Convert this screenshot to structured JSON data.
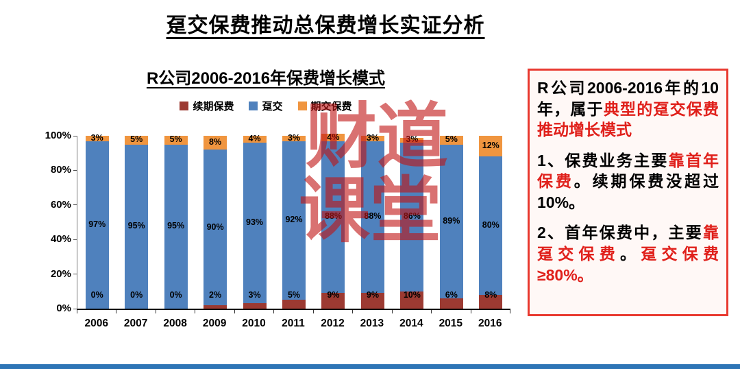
{
  "page": {
    "main_title": "趸交保费推动总保费增长实证分析",
    "bottom_bar_color": "#2e75b6"
  },
  "chart": {
    "title": "R公司2006-2016年保费增长模式",
    "watermark_lines": [
      "财道",
      "课堂"
    ],
    "watermark_color": "#c01414"
  },
  "chart_data": {
    "type": "bar",
    "stacked": true,
    "title": "R公司2006-2016年保费增长模式",
    "categories": [
      "2006",
      "2007",
      "2008",
      "2009",
      "2010",
      "2011",
      "2012",
      "2013",
      "2014",
      "2015",
      "2016"
    ],
    "series": [
      {
        "key": "renewal-premium",
        "name": "续期保费",
        "color": "#9c3a32",
        "values": [
          0,
          0,
          0,
          2,
          3,
          5,
          9,
          9,
          10,
          6,
          8
        ]
      },
      {
        "key": "single-premium",
        "name": "趸交",
        "color": "#4f81bd",
        "values": [
          97,
          95,
          95,
          90,
          93,
          92,
          88,
          88,
          86,
          89,
          80
        ]
      },
      {
        "key": "regular-premium",
        "name": "期交保费",
        "color": "#f0953f",
        "values": [
          3,
          5,
          5,
          8,
          4,
          3,
          4,
          3,
          3,
          5,
          12
        ]
      }
    ],
    "value_suffix": "%",
    "ylim": [
      0,
      100
    ],
    "yticks": [
      "0%",
      "20%",
      "40%",
      "60%",
      "80%",
      "100%"
    ],
    "legend_position": "top",
    "grid": false
  },
  "sidebar": {
    "border_color": "#e8392f",
    "background_color": "#fff8f6",
    "text_red": "#e0201b",
    "paragraphs": [
      {
        "segments": [
          {
            "text": "R公司2006-2016年的10年，属于",
            "red": false
          },
          {
            "text": "典型的趸交保费推动增长模式",
            "red": true
          }
        ]
      },
      {
        "segments": [
          {
            "text": "1、保费业务主要",
            "red": false
          },
          {
            "text": "靠首年保费",
            "red": true
          },
          {
            "text": "。续期保费没超过10%。",
            "red": false
          }
        ]
      },
      {
        "segments": [
          {
            "text": "2、首年保费中，主要",
            "red": false
          },
          {
            "text": "靠趸交保费",
            "red": true
          },
          {
            "text": "。",
            "red": false
          },
          {
            "text": "趸交保费≥80%。",
            "red": true
          }
        ]
      }
    ]
  }
}
